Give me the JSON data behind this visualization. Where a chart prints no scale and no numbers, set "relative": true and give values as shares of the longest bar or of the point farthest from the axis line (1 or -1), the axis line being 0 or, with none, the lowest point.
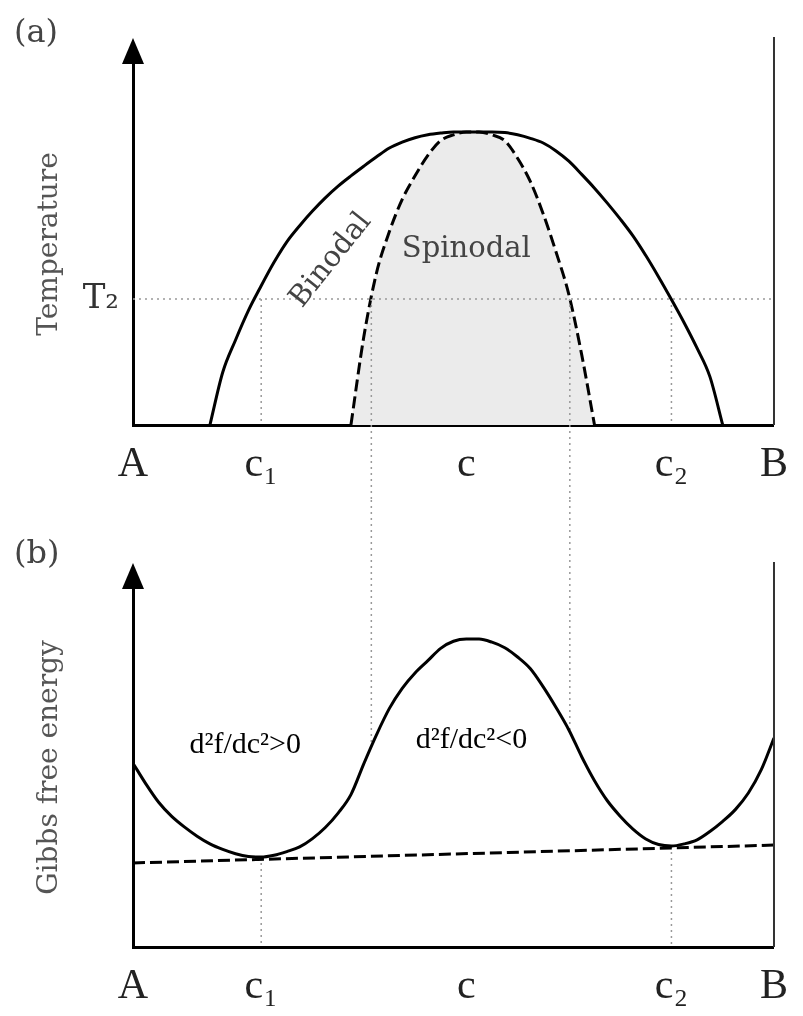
{
  "chart_data": [
    {
      "type": "line",
      "title": "(a)",
      "ylabel": "Temperature",
      "relative": true,
      "categories": [
        "A",
        null,
        null,
        null,
        null,
        null,
        null,
        null,
        null,
        null,
        "c₁",
        null,
        null,
        null,
        null,
        null,
        null,
        null,
        null,
        null,
        null,
        null,
        null,
        null,
        null,
        null,
        "c",
        null,
        null,
        null,
        null,
        null,
        null,
        null,
        null,
        null,
        null,
        null,
        null,
        null,
        null,
        null,
        "c₂",
        null,
        null,
        null,
        null,
        null,
        null,
        null,
        "B"
      ],
      "series": [
        {
          "name": "Binodal",
          "color": "#000000",
          "values": [
            null,
            null,
            null,
            null,
            null,
            null,
            0,
            0.18,
            0.29,
            0.39,
            0.475,
            0.555,
            0.625,
            0.68,
            0.73,
            0.775,
            0.815,
            0.85,
            0.883,
            0.915,
            0.945,
            0.965,
            0.98,
            0.99,
            0.996,
            1,
            1,
            1,
            1,
            0.998,
            0.99,
            0.978,
            0.962,
            0.935,
            0.9,
            0.855,
            0.808,
            0.757,
            0.703,
            0.645,
            0.578,
            0.505,
            0.428,
            0.348,
            0.262,
            0.165,
            0,
            null,
            null,
            null,
            null
          ]
        },
        {
          "name": "Spinodal",
          "type": "area",
          "line_style": "dashed",
          "color": "#ebebeb",
          "values": [
            null,
            null,
            null,
            null,
            null,
            null,
            null,
            null,
            null,
            null,
            null,
            null,
            null,
            null,
            null,
            null,
            null,
            0,
            0.3,
            0.52,
            0.66,
            0.77,
            0.85,
            0.92,
            0.97,
            0.99,
            1,
            1,
            0.99,
            0.97,
            0.91,
            0.83,
            0.72,
            0.59,
            0.445,
            0.24,
            0,
            null,
            null,
            null,
            null,
            null,
            null,
            null,
            null,
            null,
            null,
            null,
            null,
            null,
            null
          ]
        }
      ],
      "ref_lines": [
        {
          "axis": "y",
          "value": 0.43,
          "label": "T₂",
          "color": "#999999",
          "line_style": "dotted"
        },
        {
          "axis": "x",
          "value": "c₁",
          "color": "#999999",
          "line_style": "dotted"
        },
        {
          "axis": "x",
          "value": "c₂",
          "color": "#999999",
          "line_style": "dotted"
        }
      ]
    },
    {
      "type": "line",
      "title": "(b)",
      "ylabel": "Gibbs free energy",
      "relative": true,
      "categories": [
        "A",
        null,
        null,
        null,
        null,
        null,
        null,
        null,
        null,
        null,
        "c₁",
        null,
        null,
        null,
        null,
        null,
        null,
        null,
        null,
        null,
        null,
        null,
        null,
        null,
        null,
        null,
        "c",
        null,
        null,
        null,
        null,
        null,
        null,
        null,
        null,
        null,
        null,
        null,
        null,
        null,
        null,
        null,
        "c₂",
        null,
        null,
        null,
        null,
        null,
        null,
        null,
        "B"
      ],
      "series": [
        {
          "color": "#000000",
          "values": [
            0.597,
            0.53,
            0.47,
            0.425,
            0.39,
            0.36,
            0.335,
            0.317,
            0.303,
            0.294,
            0.292,
            0.298,
            0.31,
            0.325,
            0.352,
            0.388,
            0.435,
            0.495,
            0.595,
            0.69,
            0.775,
            0.84,
            0.89,
            0.93,
            0.97,
            0.993,
            1,
            1,
            0.99,
            0.972,
            0.942,
            0.904,
            0.845,
            0.778,
            0.705,
            0.618,
            0.54,
            0.475,
            0.425,
            0.383,
            0.351,
            0.333,
            0.328,
            0.335,
            0.348,
            0.375,
            0.408,
            0.447,
            0.5,
            0.575,
            0.679
          ]
        },
        {
          "line_style": "dashed",
          "color": "#000000",
          "x": [
            "A",
            "B"
          ],
          "values": [
            0.273,
            0.331
          ]
        }
      ],
      "ref_lines": [
        {
          "axis": "x",
          "value": "c₁",
          "color": "#999999",
          "line_style": "dotted"
        },
        {
          "axis": "x",
          "value": "c₂",
          "color": "#999999",
          "line_style": "dotted"
        }
      ],
      "annotations": [
        "d²f/dc²>0",
        "d²f/dc²<0"
      ]
    }
  ]
}
